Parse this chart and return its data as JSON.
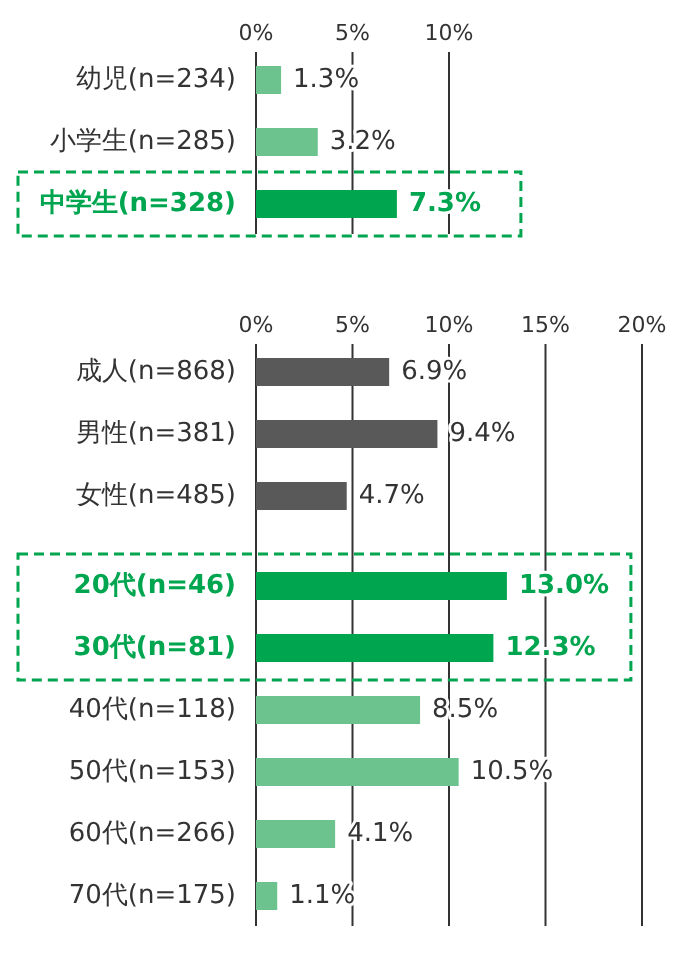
{
  "chart_data": [
    {
      "type": "bar",
      "orientation": "horizontal",
      "categories": [
        "幼児(n=234)",
        "小学生(n=285)",
        "中学生(n=328)"
      ],
      "values": [
        1.3,
        3.2,
        7.3
      ],
      "colors": [
        "#6cc38e",
        "#6cc38e",
        "#00a54f"
      ],
      "xlim": [
        0,
        10
      ],
      "xticks": [
        {
          "value": 0,
          "label": "0%"
        },
        {
          "value": 5,
          "label": "5%"
        },
        {
          "value": 10,
          "label": "10%"
        }
      ],
      "grid": "x",
      "value_labels": [
        "1.3%",
        "3.2%",
        "7.3%"
      ]
    },
    {
      "type": "bar",
      "orientation": "horizontal",
      "categories": [
        "成人(n=868)",
        "男性(n=381)",
        "女性(n=485)",
        "20代(n=46)",
        "30代(n=81)",
        "40代(n=118)",
        "50代(n=153)",
        "60代(n=266)",
        "70代(n=175)"
      ],
      "values": [
        6.9,
        9.4,
        4.7,
        13.0,
        12.3,
        8.5,
        10.5,
        4.1,
        1.1
      ],
      "colors": [
        "#595959",
        "#595959",
        "#595959",
        "#00a54f",
        "#00a54f",
        "#6cc38e",
        "#6cc38e",
        "#6cc38e",
        "#6cc38e"
      ],
      "xlim": [
        0,
        20
      ],
      "xticks": [
        {
          "value": 0,
          "label": "0%"
        },
        {
          "value": 5,
          "label": "5%"
        },
        {
          "value": 10,
          "label": "10%"
        },
        {
          "value": 15,
          "label": "15%"
        },
        {
          "value": 20,
          "label": "20%"
        }
      ],
      "grid": "x",
      "value_labels": [
        "6.9%",
        "9.4%",
        "4.7%",
        "13.0%",
        "12.3%",
        "8.5%",
        "10.5%",
        "4.1%",
        "1.1%"
      ]
    }
  ]
}
